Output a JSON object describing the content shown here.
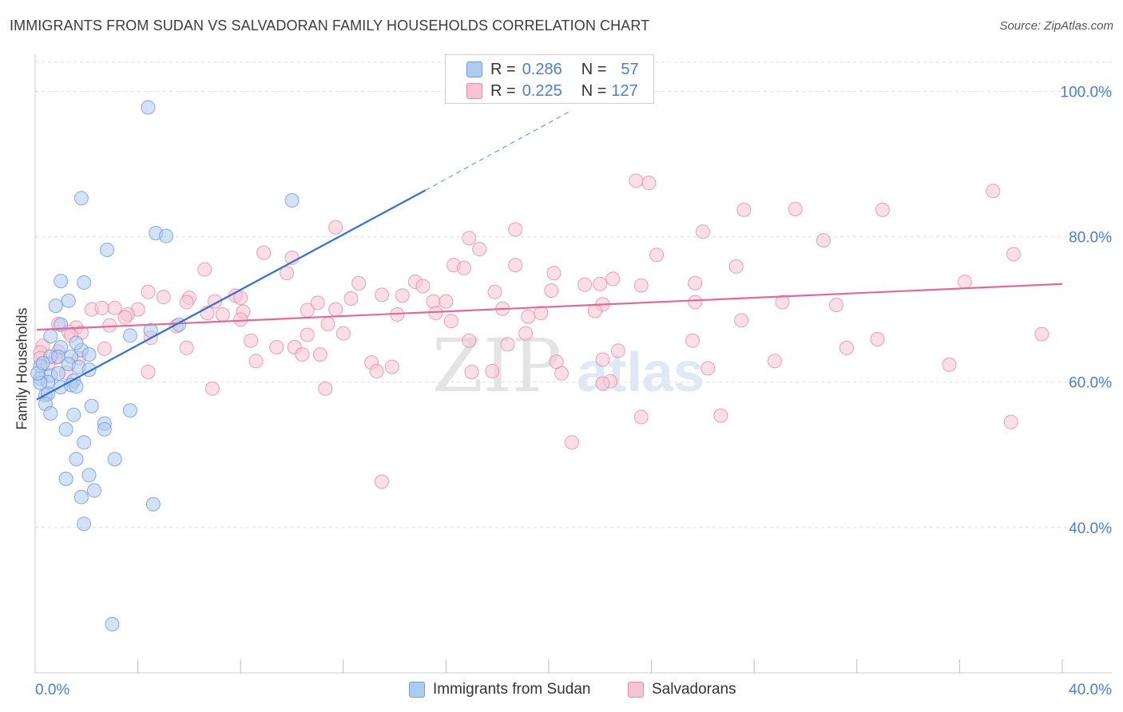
{
  "header": {
    "title": "IMMIGRANTS FROM SUDAN VS SALVADORAN FAMILY HOUSEHOLDS CORRELATION CHART",
    "source": "Source: ZipAtlas.com"
  },
  "watermark": {
    "zip": "ZIP",
    "atlas": "atlas"
  },
  "legend": {
    "rows": [
      {
        "r_label": "R =",
        "r_value": "0.286",
        "n_label": "N =",
        "n_value": "57",
        "color": "#aecbf1",
        "border": "#6f9fe0"
      },
      {
        "r_label": "R =",
        "r_value": "0.225",
        "n_label": "N =",
        "n_value": "127",
        "color": "#f7c4d3",
        "border": "#e98aa8"
      }
    ]
  },
  "bottom_legend": {
    "items": [
      {
        "label": "Immigrants from Sudan",
        "color": "#aecbf1",
        "border": "#6f9fe0"
      },
      {
        "label": "Salvadorans",
        "color": "#f7c4d3",
        "border": "#e98aa8"
      }
    ]
  },
  "chart_data": {
    "type": "scatter",
    "title": "IMMIGRANTS FROM SUDAN VS SALVADORAN FAMILY HOUSEHOLDS CORRELATION CHART",
    "xlabel": "",
    "ylabel": "Family Households",
    "xlim": [
      0,
      40
    ],
    "ylim": [
      20,
      104
    ],
    "x_tick_labels": [
      "0.0%",
      "40.0%"
    ],
    "y_ticks": [
      40,
      60,
      80,
      100
    ],
    "y_tick_labels": [
      "40.0%",
      "60.0%",
      "80.0%",
      "100.0%"
    ],
    "grid": true,
    "legend_position": "top-center",
    "colors": {
      "sudan_fill": "#aecbf1",
      "sudan_stroke": "#6f9fe0",
      "sudan_line": "#2f6fd6",
      "salv_fill": "#f7c4d3",
      "salv_stroke": "#e98aa8",
      "salv_line": "#e06a96",
      "tick_label": "#4a7fd1",
      "grid": "#dddddd"
    },
    "series": [
      {
        "name": "Immigrants from Sudan",
        "trend": {
          "x": [
            0.06,
            15.2
          ],
          "y": [
            57.6,
            86.4
          ],
          "dash_to": [
            20.8,
            97.2
          ]
        },
        "points": [
          [
            4.4,
            97.8
          ],
          [
            1.8,
            85.3
          ],
          [
            10.0,
            85.0
          ],
          [
            4.7,
            80.5
          ],
          [
            5.1,
            80.1
          ],
          [
            2.8,
            78.2
          ],
          [
            1.0,
            73.9
          ],
          [
            1.9,
            73.7
          ],
          [
            1.3,
            71.2
          ],
          [
            0.8,
            70.5
          ],
          [
            1.0,
            67.9
          ],
          [
            5.6,
            67.9
          ],
          [
            0.6,
            66.3
          ],
          [
            1.0,
            64.8
          ],
          [
            1.8,
            64.4
          ],
          [
            0.6,
            63.5
          ],
          [
            1.4,
            63.5
          ],
          [
            0.9,
            63.5
          ],
          [
            1.3,
            62.5
          ],
          [
            0.2,
            62.2
          ],
          [
            1.7,
            62.1
          ],
          [
            2.1,
            61.7
          ],
          [
            0.6,
            60.9
          ],
          [
            0.2,
            60.5
          ],
          [
            1.5,
            60.2
          ],
          [
            0.5,
            60.0
          ],
          [
            0.2,
            59.9
          ],
          [
            1.0,
            59.3
          ],
          [
            1.4,
            59.6
          ],
          [
            1.6,
            59.4
          ],
          [
            0.4,
            58.2
          ],
          [
            0.5,
            58.4
          ],
          [
            0.4,
            57.0
          ],
          [
            2.2,
            56.7
          ],
          [
            0.6,
            55.7
          ],
          [
            1.5,
            55.5
          ],
          [
            3.7,
            56.1
          ],
          [
            2.7,
            54.3
          ],
          [
            1.2,
            53.5
          ],
          [
            2.7,
            53.5
          ],
          [
            1.9,
            51.7
          ],
          [
            1.6,
            49.4
          ],
          [
            3.1,
            49.4
          ],
          [
            1.2,
            46.7
          ],
          [
            2.1,
            47.2
          ],
          [
            2.3,
            45.1
          ],
          [
            1.8,
            44.2
          ],
          [
            4.6,
            43.2
          ],
          [
            1.9,
            40.5
          ],
          [
            3.0,
            26.7
          ],
          [
            4.5,
            67.1
          ],
          [
            3.7,
            66.4
          ],
          [
            0.1,
            61.2
          ],
          [
            0.3,
            62.6
          ],
          [
            0.9,
            61.2
          ],
          [
            2.1,
            63.8
          ],
          [
            1.6,
            65.4
          ]
        ]
      },
      {
        "name": "Salvadorans",
        "trend": {
          "x": [
            0.06,
            40.0
          ],
          "y": [
            67.2,
            73.5
          ]
        },
        "points": [
          [
            23.4,
            87.7
          ],
          [
            23.9,
            87.4
          ],
          [
            37.3,
            86.3
          ],
          [
            27.6,
            83.7
          ],
          [
            29.6,
            83.8
          ],
          [
            33.0,
            83.7
          ],
          [
            11.7,
            81.3
          ],
          [
            18.7,
            81.0
          ],
          [
            26.0,
            80.7
          ],
          [
            16.9,
            79.8
          ],
          [
            30.7,
            79.5
          ],
          [
            17.3,
            78.3
          ],
          [
            8.9,
            77.8
          ],
          [
            24.2,
            77.5
          ],
          [
            38.1,
            77.6
          ],
          [
            10.0,
            77.1
          ],
          [
            16.3,
            76.1
          ],
          [
            16.7,
            75.7
          ],
          [
            18.7,
            76.1
          ],
          [
            27.3,
            75.9
          ],
          [
            6.6,
            75.5
          ],
          [
            9.8,
            75.0
          ],
          [
            20.2,
            75.0
          ],
          [
            12.6,
            73.6
          ],
          [
            14.8,
            73.8
          ],
          [
            21.4,
            73.4
          ],
          [
            22.0,
            73.5
          ],
          [
            22.5,
            74.2
          ],
          [
            23.6,
            73.3
          ],
          [
            25.7,
            73.6
          ],
          [
            36.2,
            73.8
          ],
          [
            15.1,
            73.2
          ],
          [
            4.4,
            72.4
          ],
          [
            17.9,
            72.4
          ],
          [
            20.1,
            72.6
          ],
          [
            14.3,
            71.9
          ],
          [
            7.8,
            71.9
          ],
          [
            5.0,
            71.7
          ],
          [
            6.0,
            71.6
          ],
          [
            8.0,
            71.6
          ],
          [
            12.3,
            71.5
          ],
          [
            13.5,
            72.0
          ],
          [
            15.5,
            71.1
          ],
          [
            5.9,
            71.0
          ],
          [
            7.0,
            71.1
          ],
          [
            11.0,
            70.9
          ],
          [
            16.0,
            71.1
          ],
          [
            22.1,
            70.7
          ],
          [
            25.7,
            71.0
          ],
          [
            29.1,
            71.0
          ],
          [
            31.2,
            70.6
          ],
          [
            2.2,
            70.0
          ],
          [
            2.6,
            70.2
          ],
          [
            3.1,
            70.2
          ],
          [
            4.0,
            70.0
          ],
          [
            6.7,
            69.5
          ],
          [
            10.6,
            69.9
          ],
          [
            11.7,
            70.0
          ],
          [
            14.1,
            69.3
          ],
          [
            21.8,
            69.8
          ],
          [
            7.3,
            69.3
          ],
          [
            8.1,
            69.7
          ],
          [
            3.6,
            69.3
          ],
          [
            3.5,
            68.9
          ],
          [
            19.2,
            69.0
          ],
          [
            19.7,
            69.5
          ],
          [
            27.5,
            68.5
          ],
          [
            15.6,
            69.5
          ],
          [
            8.0,
            68.6
          ],
          [
            11.4,
            68.0
          ],
          [
            16.2,
            68.4
          ],
          [
            0.9,
            68.0
          ],
          [
            2.9,
            67.8
          ],
          [
            5.5,
            67.7
          ],
          [
            1.6,
            67.5
          ],
          [
            1.3,
            66.9
          ],
          [
            1.8,
            66.8
          ],
          [
            1.4,
            66.4
          ],
          [
            10.6,
            66.5
          ],
          [
            12.0,
            66.7
          ],
          [
            19.1,
            66.7
          ],
          [
            4.5,
            66.1
          ],
          [
            8.4,
            65.7
          ],
          [
            16.9,
            65.7
          ],
          [
            18.4,
            65.2
          ],
          [
            25.6,
            65.7
          ],
          [
            32.8,
            65.9
          ],
          [
            39.2,
            66.6
          ],
          [
            9.4,
            64.8
          ],
          [
            10.1,
            64.8
          ],
          [
            0.3,
            65.0
          ],
          [
            2.7,
            64.6
          ],
          [
            5.9,
            64.7
          ],
          [
            0.9,
            64.2
          ],
          [
            0.2,
            64.1
          ],
          [
            10.4,
            63.8
          ],
          [
            11.1,
            63.8
          ],
          [
            22.7,
            64.3
          ],
          [
            31.6,
            64.7
          ],
          [
            0.8,
            63.4
          ],
          [
            1.7,
            63.3
          ],
          [
            0.2,
            63.3
          ],
          [
            20.3,
            62.8
          ],
          [
            22.1,
            63.1
          ],
          [
            13.1,
            62.7
          ],
          [
            8.6,
            62.9
          ],
          [
            0.5,
            62.5
          ],
          [
            13.9,
            62.1
          ],
          [
            28.8,
            62.9
          ],
          [
            35.6,
            62.4
          ],
          [
            1.2,
            61.3
          ],
          [
            4.4,
            61.4
          ],
          [
            17.8,
            61.5
          ],
          [
            13.3,
            61.5
          ],
          [
            26.2,
            61.9
          ],
          [
            20.5,
            61.2
          ],
          [
            17.0,
            61.4
          ],
          [
            6.9,
            59.1
          ],
          [
            11.3,
            59.1
          ],
          [
            22.4,
            60.1
          ],
          [
            26.7,
            55.4
          ],
          [
            23.6,
            55.2
          ],
          [
            22.1,
            59.8
          ],
          [
            38.0,
            54.5
          ],
          [
            20.9,
            51.7
          ],
          [
            13.5,
            46.3
          ],
          [
            18.2,
            70.1
          ]
        ]
      }
    ]
  }
}
